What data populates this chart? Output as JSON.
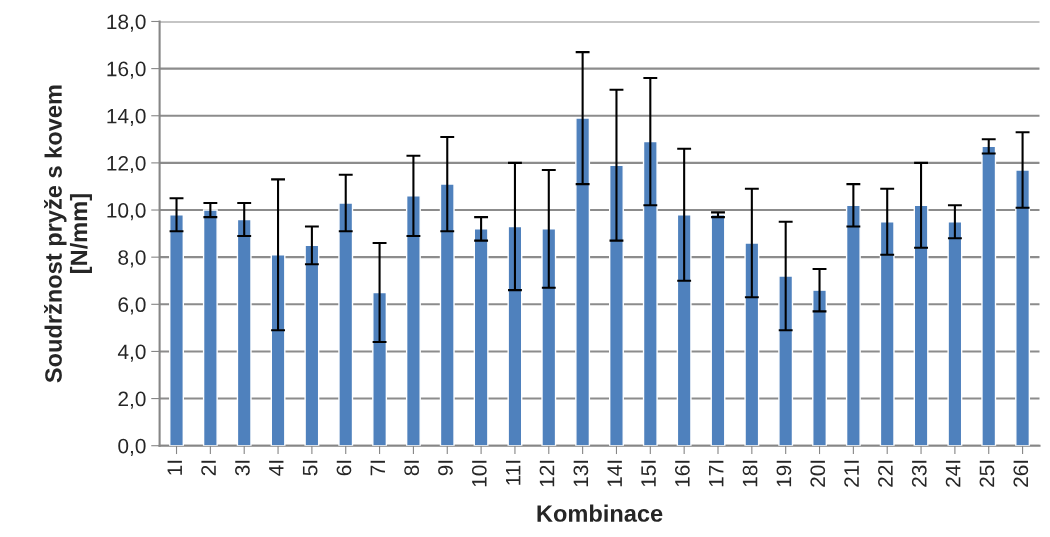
{
  "chart_data": {
    "type": "bar",
    "xlabel": "Kombinace",
    "ylabel": "Soudržnost pryže s kovem\n[N/mm]",
    "categories": [
      "1I",
      "2I",
      "3I",
      "4I",
      "5I",
      "6I",
      "7I",
      "8I",
      "9I",
      "10I",
      "11I",
      "12I",
      "13I",
      "14I",
      "15I",
      "16I",
      "17I",
      "18I",
      "19I",
      "20I",
      "21I",
      "22I",
      "23I",
      "24I",
      "25I",
      "26I"
    ],
    "values": [
      9.8,
      10.0,
      9.6,
      8.1,
      8.5,
      10.3,
      6.5,
      10.6,
      11.1,
      9.2,
      9.3,
      9.2,
      13.9,
      11.9,
      12.9,
      9.8,
      9.8,
      8.6,
      7.2,
      6.6,
      10.2,
      9.5,
      10.2,
      9.5,
      12.7,
      11.7
    ],
    "errors": [
      0.7,
      0.3,
      0.7,
      3.2,
      0.8,
      1.2,
      2.1,
      1.7,
      2.0,
      0.5,
      2.7,
      2.5,
      2.8,
      3.2,
      2.7,
      2.8,
      0.1,
      2.3,
      2.3,
      0.9,
      0.9,
      1.4,
      1.8,
      0.7,
      0.3,
      1.6
    ],
    "color": "#4f81bd",
    "ylim": [
      0,
      18
    ],
    "yticks": [
      {
        "value": 0,
        "label": "0,0"
      },
      {
        "value": 2,
        "label": "2,0"
      },
      {
        "value": 4,
        "label": "4,0"
      },
      {
        "value": 6,
        "label": "6,0"
      },
      {
        "value": 8,
        "label": "8,0"
      },
      {
        "value": 10,
        "label": "10,0"
      },
      {
        "value": 12,
        "label": "12,0"
      },
      {
        "value": 14,
        "label": "14,0"
      },
      {
        "value": 16,
        "label": "16,0"
      },
      {
        "value": 18,
        "label": "18,0"
      }
    ],
    "grid": "y",
    "legend": false
  }
}
